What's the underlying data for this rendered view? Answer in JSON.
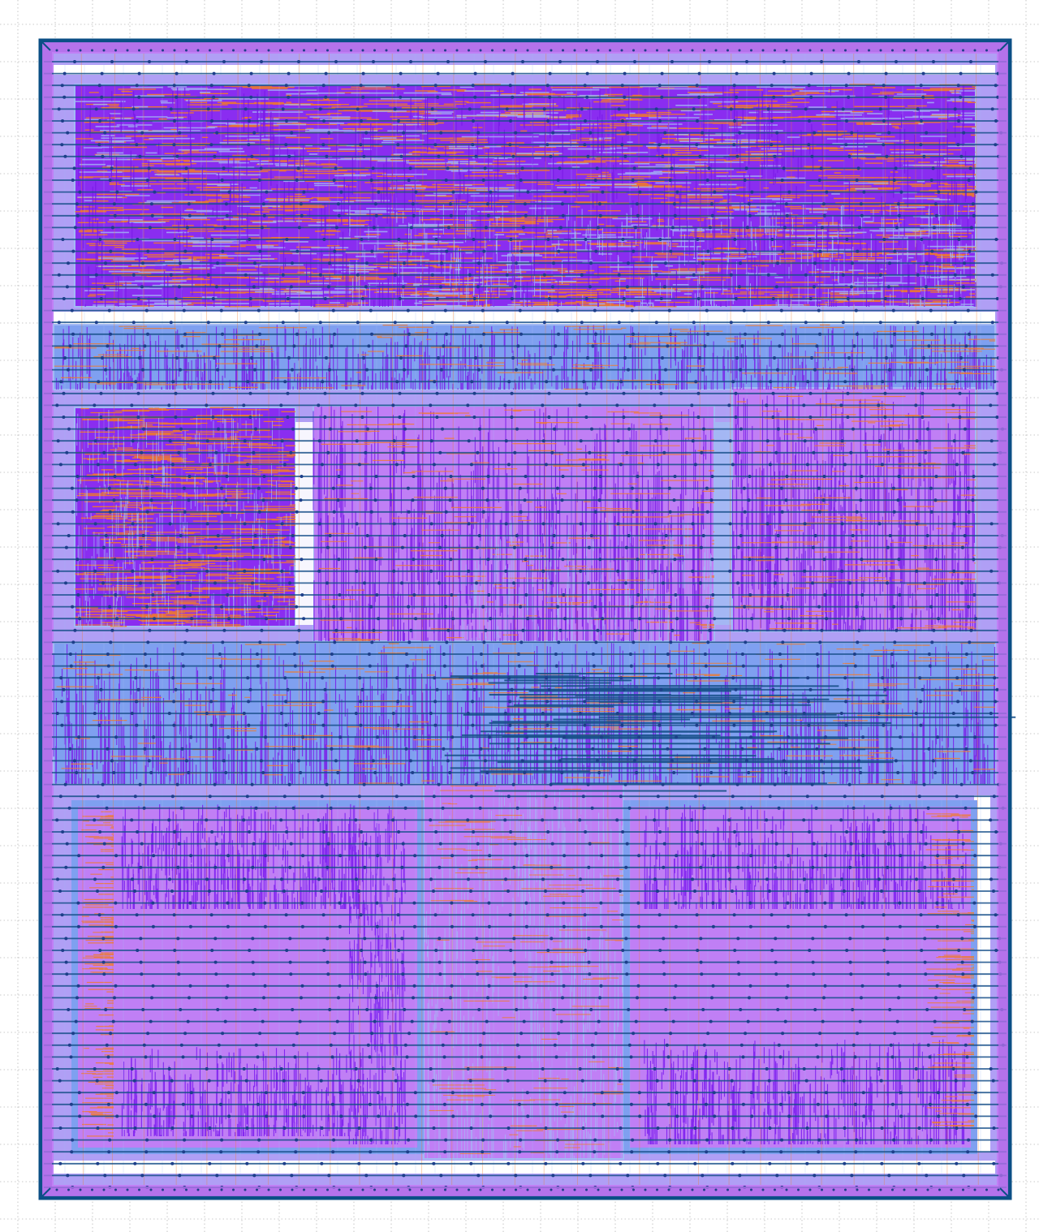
{
  "view": {
    "kind": "layout-viewer"
  },
  "colors": {
    "background": "#ffffff",
    "grid_dots": "#b8b8b8",
    "die_fill": "#c07ff5",
    "die_edge": "#b06fe8",
    "core_ring": "#0b4f86",
    "power_rail": "#17508a",
    "macro_fill": "#8a2df0",
    "macro_dense": "#7a1be8",
    "metal_violet": "#7d1ff0",
    "metal_blue": "#7fa0f0",
    "metal_orange": "#f07a2a",
    "metal_light": "#a3b9f4",
    "channel_white": "#ffffff",
    "via_dot": "#1d3f8a"
  },
  "regions": [
    {
      "name": "macro-top",
      "kind": "memory-macro",
      "density": "high"
    },
    {
      "name": "block-left-upper",
      "kind": "logic-block",
      "density": "high"
    },
    {
      "name": "block-center-upper",
      "kind": "logic-block",
      "density": "medium"
    },
    {
      "name": "block-right-upper",
      "kind": "logic-block",
      "density": "medium"
    },
    {
      "name": "block-middle-band",
      "kind": "logic-band",
      "density": "medium"
    },
    {
      "name": "block-left-lower",
      "kind": "logic-block",
      "density": "low"
    },
    {
      "name": "block-center-lower",
      "kind": "logic-block",
      "density": "low"
    },
    {
      "name": "block-right-lower",
      "kind": "logic-block",
      "density": "low"
    }
  ]
}
